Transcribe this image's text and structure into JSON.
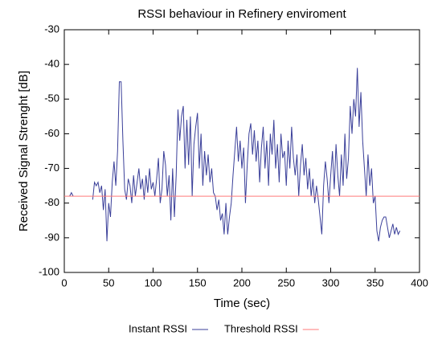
{
  "chart_data": {
    "type": "line",
    "title": "RSSI behaviour in Refinery enviroment",
    "x_label": "Time (sec)",
    "y_label": "Received Signal Strenght [dB]",
    "xlim": [
      0,
      400
    ],
    "ylim": [
      -100,
      -30
    ],
    "xticks": [
      0,
      50,
      100,
      150,
      200,
      250,
      300,
      350,
      400
    ],
    "yticks": [
      -30,
      -40,
      -50,
      -60,
      -70,
      -80,
      -90,
      -100
    ],
    "grid": false,
    "legend": "bottom",
    "series": [
      {
        "name": "Instant RSSI",
        "color": "#3a3f99",
        "x": [
          6,
          8,
          10,
          20,
          32,
          34,
          36,
          38,
          40,
          42,
          44,
          46,
          48,
          50,
          52,
          54,
          56,
          58,
          60,
          62,
          64,
          66,
          68,
          70,
          72,
          74,
          76,
          78,
          80,
          82,
          84,
          86,
          88,
          90,
          92,
          94,
          96,
          98,
          100,
          102,
          104,
          106,
          108,
          110,
          112,
          114,
          116,
          118,
          120,
          122,
          124,
          126,
          128,
          130,
          132,
          134,
          136,
          138,
          140,
          142,
          144,
          146,
          148,
          150,
          152,
          154,
          156,
          158,
          160,
          162,
          164,
          166,
          168,
          170,
          172,
          174,
          176,
          178,
          180,
          182,
          184,
          186,
          188,
          190,
          192,
          194,
          196,
          198,
          200,
          202,
          204,
          206,
          208,
          210,
          212,
          214,
          216,
          218,
          220,
          222,
          224,
          226,
          228,
          230,
          232,
          234,
          236,
          238,
          240,
          242,
          244,
          246,
          248,
          250,
          252,
          254,
          256,
          258,
          260,
          262,
          264,
          266,
          268,
          270,
          272,
          274,
          276,
          278,
          280,
          282,
          284,
          286,
          288,
          290,
          292,
          294,
          296,
          298,
          300,
          302,
          304,
          306,
          308,
          310,
          312,
          314,
          316,
          318,
          320,
          322,
          324,
          326,
          328,
          330,
          332,
          334,
          336,
          338,
          340,
          342,
          344,
          346,
          348,
          350,
          352,
          354,
          356,
          358,
          360,
          362,
          364,
          366,
          368,
          370,
          372,
          374,
          376,
          378
        ],
        "values": [
          -78,
          -77,
          -78,
          null,
          -79,
          -74,
          -75,
          -74,
          -77,
          -75,
          -82,
          -76,
          -91,
          -80,
          -84,
          -74,
          -68,
          -75,
          -65,
          -45,
          -45,
          -62,
          -76,
          -79,
          -73,
          -75,
          -80,
          -72,
          -78,
          -74,
          -70,
          -76,
          -73,
          -79,
          -72,
          -77,
          -70,
          -76,
          -74,
          -78,
          -73,
          -67,
          -80,
          -76,
          -65,
          -69,
          -78,
          -72,
          -85,
          -70,
          -84,
          -72,
          -53,
          -62,
          -55,
          -52,
          -70,
          -56,
          -69,
          -55,
          -78,
          -63,
          -58,
          -54,
          -70,
          -60,
          -75,
          -65,
          -72,
          -66,
          -74,
          -70,
          -77,
          -78,
          -82,
          -79,
          -85,
          -83,
          -89,
          -80,
          -89,
          -84,
          -80,
          -72,
          -65,
          -58,
          -68,
          -62,
          -70,
          -64,
          -80,
          -69,
          -60,
          -57,
          -66,
          -59,
          -68,
          -62,
          -74,
          -64,
          -58,
          -70,
          -62,
          -75,
          -60,
          -66,
          -56,
          -70,
          -63,
          -74,
          -60,
          -67,
          -65,
          -75,
          -62,
          -70,
          -58,
          -67,
          -72,
          -66,
          -78,
          -69,
          -63,
          -72,
          -67,
          -76,
          -70,
          -78,
          -73,
          -80,
          -75,
          -79,
          -84,
          -89,
          -75,
          -68,
          -73,
          -80,
          -72,
          -65,
          -76,
          -63,
          -72,
          -78,
          -66,
          -75,
          -60,
          -73,
          -67,
          -52,
          -60,
          -50,
          -55,
          -41,
          -58,
          -48,
          -62,
          -70,
          -78,
          -66,
          -75,
          -70,
          -80,
          -78,
          -88,
          -91,
          -87,
          -85,
          -84,
          -84,
          -87,
          -90,
          -88,
          -86,
          -89,
          -87,
          -89,
          -88
        ]
      },
      {
        "name": "Threshold RSSI",
        "color": "#ff7a7a",
        "x": [
          0,
          400
        ],
        "values": [
          -78,
          -78
        ]
      }
    ]
  }
}
